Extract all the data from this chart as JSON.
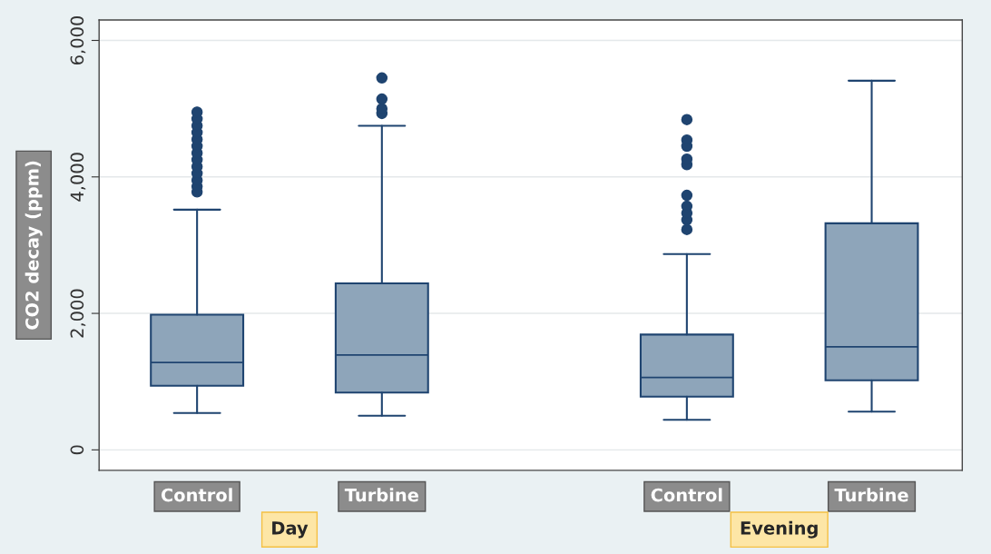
{
  "chart_data": {
    "type": "box",
    "ylabel": "CO2 decay (ppm)",
    "categories": [
      "Control",
      "Turbine",
      "Control",
      "Turbine"
    ],
    "annotations": [
      "Day",
      "Evening"
    ],
    "ylim": [
      -300,
      6300
    ],
    "yticks": [
      {
        "value": 0,
        "label": "0"
      },
      {
        "value": 2000,
        "label": "2,000"
      },
      {
        "value": 4000,
        "label": "4,000"
      },
      {
        "value": 6000,
        "label": "6,000"
      }
    ],
    "grid": "y",
    "series": [
      {
        "color": "#8ea5ba",
        "boxes": [
          {
            "low": 540,
            "q1": 940,
            "median": 1280,
            "q3": 1980,
            "high": 3520,
            "outliers": [
              3780,
              3860,
              3950,
              4050,
              4150,
              4250,
              4350,
              4450,
              4550,
              4650,
              4750,
              4850,
              4950
            ]
          },
          {
            "low": 500,
            "q1": 840,
            "median": 1390,
            "q3": 2440,
            "high": 4750,
            "outliers": [
              4930,
              5000,
              5140,
              5450
            ]
          },
          {
            "low": 440,
            "q1": 780,
            "median": 1060,
            "q3": 1690,
            "high": 2870,
            "outliers": [
              3230,
              3370,
              3470,
              3570,
              3730,
              4180,
              4260,
              4450,
              4540,
              4840
            ]
          },
          {
            "low": 560,
            "q1": 1020,
            "median": 1510,
            "q3": 3320,
            "high": 5410
          }
        ]
      }
    ]
  }
}
